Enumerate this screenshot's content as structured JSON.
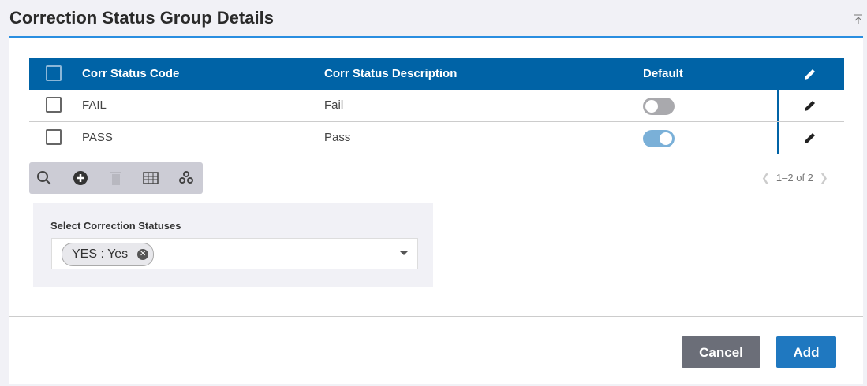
{
  "title": "Correction Status Group Details",
  "table": {
    "headers": [
      "Corr Status Code",
      "Corr Status Description",
      "Default"
    ],
    "rows": [
      {
        "code": "FAIL",
        "description": "Fail",
        "default": false
      },
      {
        "code": "PASS",
        "description": "Pass",
        "default": true
      }
    ]
  },
  "toolbar": {
    "icons": [
      "search-icon",
      "add-circle-icon",
      "trash-icon",
      "columns-icon",
      "settings-icon"
    ]
  },
  "pager": {
    "text": "1–2 of 2"
  },
  "select": {
    "label": "Select Correction Statuses",
    "chips": [
      "YES : Yes"
    ]
  },
  "buttons": {
    "cancel": "Cancel",
    "add": "Add"
  },
  "colors": {
    "header": "#0063a6",
    "accent": "#2a8ee0",
    "toggle_on": "#7ab0d8",
    "toggle_off": "#a9a9ad",
    "cancel": "#6b6e78",
    "add": "#1f78c0"
  }
}
